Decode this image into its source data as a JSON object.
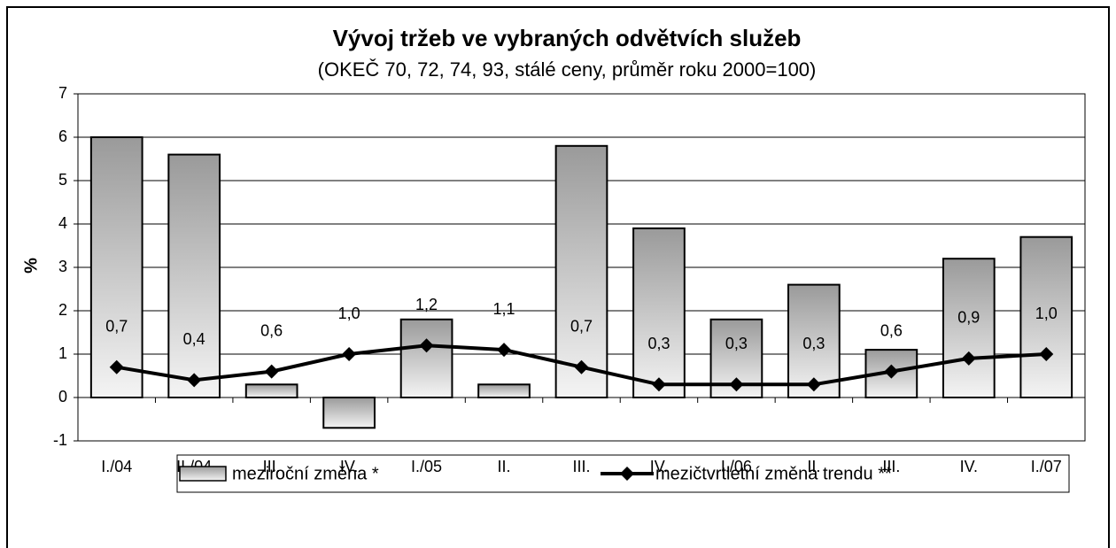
{
  "chart_data": {
    "type": "bar_line",
    "title": "Vývoj tržeb ve vybraných odvětvích služeb",
    "subtitle": "(OKEČ 70, 72, 74, 93, stálé ceny, průměr roku 2000=100)",
    "y_label": "%",
    "categories": [
      "I./04",
      "II./04",
      "III.",
      "IV.",
      "I./05",
      "II.",
      "III.",
      "IV.",
      "I./06",
      "II.",
      "III.",
      "IV.",
      "I./07"
    ],
    "series": [
      {
        "name": "meziroční změna *",
        "type": "bar",
        "color": "#9a9a9a",
        "values": [
          6.0,
          5.6,
          0.3,
          -0.7,
          1.8,
          0.3,
          5.8,
          3.9,
          1.8,
          2.6,
          1.1,
          3.2,
          3.7
        ]
      },
      {
        "name": "mezičtvrtletní změna trendu **",
        "type": "line",
        "color": "#000000",
        "values": [
          0.7,
          0.4,
          0.6,
          1.0,
          1.2,
          1.1,
          0.7,
          0.3,
          0.3,
          0.3,
          0.6,
          0.9,
          1.0
        ],
        "value_labels": [
          "0,7",
          "0,4",
          "0,6",
          "1,0",
          "1,2",
          "1,1",
          "0,7",
          "0,3",
          "0,3",
          "0,3",
          "0,6",
          "0,9",
          "1,0"
        ]
      }
    ],
    "ylim": [
      -1,
      7
    ],
    "yticks": [
      -1,
      0,
      1,
      2,
      3,
      4,
      5,
      6,
      7
    ],
    "grid": true
  }
}
